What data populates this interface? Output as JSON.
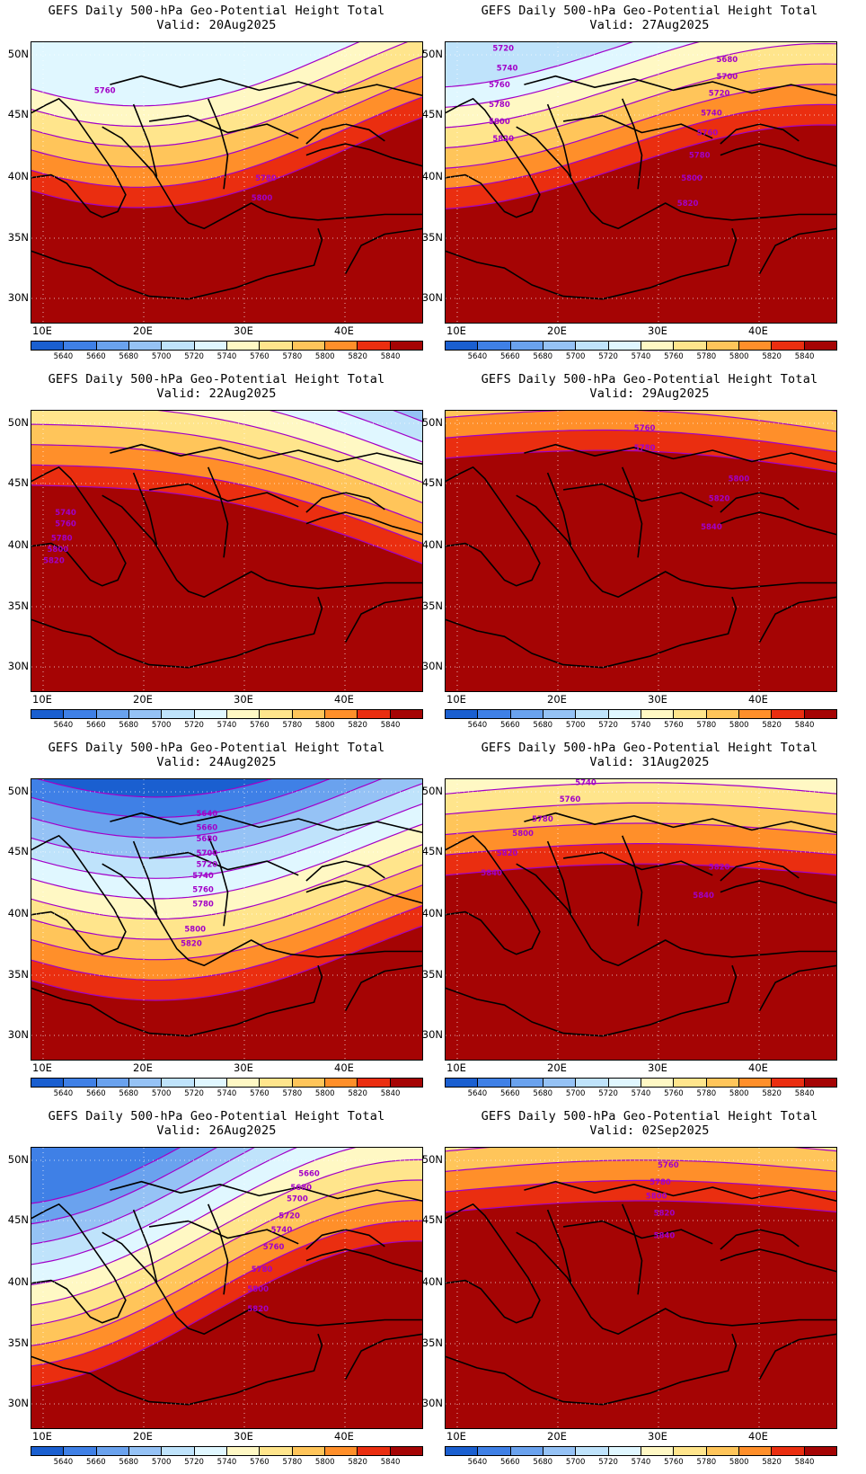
{
  "figure": {
    "colors": {
      "bins": [
        "#1a5fd0",
        "#3f80e6",
        "#6aa2ee",
        "#95c2f5",
        "#bfe3fb",
        "#e0f7ff",
        "#fff8c4",
        "#ffe58c",
        "#ffc55a",
        "#ff8f2a",
        "#ea2e10",
        "#a50404"
      ],
      "contour": "#a200c8",
      "land_border": "#000000"
    },
    "colorbar_ticks": [
      "5640",
      "5660",
      "5680",
      "5700",
      "5720",
      "5740",
      "5760",
      "5780",
      "5800",
      "5820",
      "5840"
    ],
    "lat_labels": [
      "50N",
      "45N",
      "40N",
      "35N",
      "30N"
    ],
    "lon_labels": [
      "10E",
      "20E",
      "30E",
      "40E"
    ]
  },
  "panels": [
    {
      "title": "GEFS Daily 500-hPa Geo-Potential Height Total",
      "valid": "Valid: 20Aug2025",
      "labels": [
        "5760",
        "5780",
        "5800"
      ]
    },
    {
      "title": "GEFS Daily 500-hPa Geo-Potential Height Total",
      "valid": "Valid: 27Aug2025",
      "labels": [
        "5720",
        "5740",
        "5760",
        "5780",
        "5800",
        "5820",
        "5680",
        "5700",
        "5720",
        "5740",
        "5760",
        "5780",
        "5800",
        "5820"
      ]
    },
    {
      "title": "GEFS Daily 500-hPa Geo-Potential Height Total",
      "valid": "Valid: 22Aug2025",
      "labels": [
        "5740",
        "5760",
        "5780",
        "5800",
        "5820"
      ]
    },
    {
      "title": "GEFS Daily 500-hPa Geo-Potential Height Total",
      "valid": "Valid: 29Aug2025",
      "labels": [
        "5760",
        "5780",
        "5800",
        "5820",
        "5840"
      ]
    },
    {
      "title": "GEFS Daily 500-hPa Geo-Potential Height Total",
      "valid": "Valid: 24Aug2025",
      "labels": [
        "5640",
        "5660",
        "5680",
        "5700",
        "5720",
        "5740",
        "5760",
        "5780",
        "5800",
        "5820"
      ]
    },
    {
      "title": "GEFS Daily 500-hPa Geo-Potential Height Total",
      "valid": "Valid: 31Aug2025",
      "labels": [
        "5740",
        "5760",
        "5780",
        "5800",
        "5820",
        "5840",
        "5820",
        "5840"
      ]
    },
    {
      "title": "GEFS Daily 500-hPa Geo-Potential Height Total",
      "valid": "Valid: 26Aug2025",
      "labels": [
        "5660",
        "5680",
        "5700",
        "5720",
        "5740",
        "5760",
        "5780",
        "5800",
        "5820"
      ]
    },
    {
      "title": "GEFS Daily 500-hPa Geo-Potential Height Total",
      "valid": "Valid: 02Sep2025",
      "labels": [
        "5760",
        "5780",
        "5800",
        "5820",
        "5840"
      ]
    }
  ]
}
